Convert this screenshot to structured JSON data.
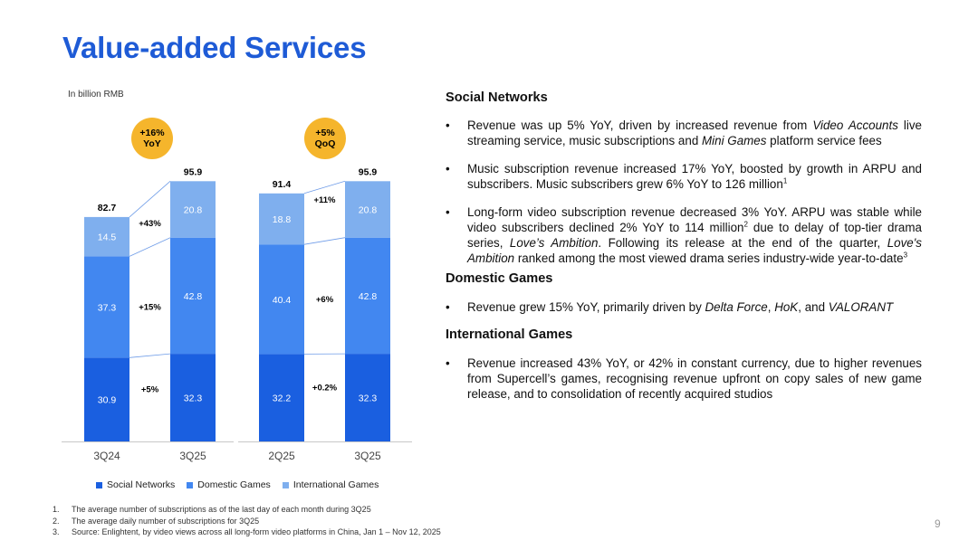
{
  "title": "Value-added Services",
  "unit_label": "In billion RMB",
  "chart_data": {
    "type": "bar",
    "stacked": true,
    "ylabel": "In billion RMB",
    "ylim": [
      0,
      100
    ],
    "series": [
      {
        "name": "Social Networks",
        "color": "#1a5fe0"
      },
      {
        "name": "Domestic Games",
        "color": "#4287f0"
      },
      {
        "name": "International Games",
        "color": "#7fafee"
      }
    ],
    "panels": [
      {
        "categories": [
          "3Q24",
          "3Q25"
        ],
        "values": [
          [
            30.9,
            37.3,
            14.5
          ],
          [
            32.3,
            42.8,
            20.8
          ]
        ],
        "totals": [
          "82.7",
          "95.9"
        ],
        "growth_labels": [
          "+5%",
          "+15%",
          "+43%"
        ],
        "badge": {
          "line1": "+16%",
          "line2": "YoY"
        }
      },
      {
        "categories": [
          "2Q25",
          "3Q25"
        ],
        "values": [
          [
            32.2,
            40.4,
            18.8
          ],
          [
            32.3,
            42.8,
            20.8
          ]
        ],
        "totals": [
          "91.4",
          "95.9"
        ],
        "growth_labels": [
          "+0.2%",
          "+6%",
          "+11%"
        ],
        "badge": {
          "line1": "+5%",
          "line2": "QoQ"
        }
      }
    ],
    "badge_color": "#f5b52c"
  },
  "legend": [
    "Social Networks",
    "Domestic Games",
    "International Games"
  ],
  "sections": {
    "social": {
      "heading": "Social Networks",
      "b1": {
        "a": "Revenue was up 5% YoY, driven by increased revenue from ",
        "i1": "Video Accounts",
        "b": " live streaming service, music subscriptions and ",
        "i2": "Mini Games",
        "c": " platform service fees"
      },
      "b2": {
        "a": "Music subscription revenue increased 17% YoY, boosted by growth in ARPU and subscribers. Music subscribers grew 6% YoY to 126 million",
        "sup": "1"
      },
      "b3": {
        "a": "Long-form video subscription revenue decreased 3% YoY. ARPU was stable while video subscribers declined 2% YoY to 114 million",
        "sup1": "2",
        "b": " due to delay of top-tier drama series, ",
        "i1": "Love’s Ambition",
        "c": ". Following its release at the end of the quarter, ",
        "i2": "Love's Ambition",
        "d": " ranked among the most viewed drama series industry-wide year-to-date",
        "sup2": "3"
      }
    },
    "domestic": {
      "heading": "Domestic Games",
      "b1": {
        "a": "Revenue grew 15% YoY, primarily driven by ",
        "i1": "Delta Force",
        "b": ", ",
        "i2": "HoK",
        "c": ", and ",
        "i3": "VALORANT"
      }
    },
    "international": {
      "heading": "International Games",
      "b1": "Revenue increased 43% YoY, or 42% in constant currency, due to higher revenues from Supercell’s games, recognising revenue upfront on copy sales of new game release, and to consolidation of recently acquired studios"
    }
  },
  "footnotes": [
    {
      "n": "1.",
      "text": "The average number of subscriptions as of the last day of each month during 3Q25"
    },
    {
      "n": "2.",
      "text": "The average daily number of subscriptions for 3Q25"
    },
    {
      "n": "3.",
      "text": "Source: Enlightent, by video views across all long-form video platforms in China, Jan 1 – Nov 12, 2025"
    }
  ],
  "page_number": "9"
}
